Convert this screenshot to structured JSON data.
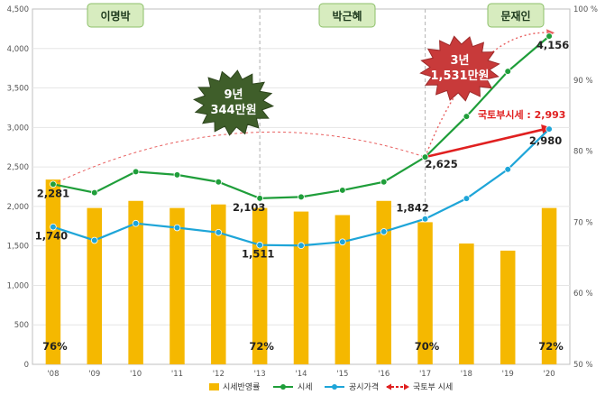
{
  "chart_data": {
    "type": "bar+line",
    "categories": [
      "'08",
      "'09",
      "'10",
      "'11",
      "'12",
      "'13",
      "'14",
      "'15",
      "'16",
      "'17",
      "'18",
      "'19",
      "'20"
    ],
    "left_axis": {
      "ylim": [
        0,
        4500
      ],
      "ticks": [
        "0",
        "500",
        "1,000",
        "1,500",
        "2,000",
        "2,500",
        "3,000",
        "3,500",
        "4,000",
        "4,500"
      ]
    },
    "right_axis": {
      "ylim": [
        50,
        100
      ],
      "ticks": [
        "50 %",
        "60 %",
        "70 %",
        "80 %",
        "90 %",
        "100 %"
      ]
    },
    "series": [
      {
        "name": "시세반영률",
        "kind": "bar",
        "axis": "right",
        "color": "#f5b800",
        "values": [
          76,
          72,
          73,
          72,
          72.5,
          72,
          71.5,
          71,
          73,
          70,
          67,
          66,
          72
        ]
      },
      {
        "name": "시세",
        "kind": "line",
        "axis": "left",
        "color": "#1f9e3a",
        "values": [
          2281,
          2175,
          2440,
          2400,
          2310,
          2103,
          2120,
          2205,
          2310,
          2625,
          3140,
          3710,
          4156
        ]
      },
      {
        "name": "공시가격",
        "kind": "line",
        "axis": "left",
        "color": "#1ea5d8",
        "values": [
          1740,
          1570,
          1785,
          1730,
          1670,
          1511,
          1505,
          1550,
          1680,
          1842,
          2100,
          2470,
          2980
        ]
      },
      {
        "name": "국토부 시세",
        "kind": "arrow",
        "axis": "left",
        "color": "#e02020",
        "values": [
          null,
          null,
          null,
          null,
          null,
          null,
          null,
          null,
          null,
          2625,
          null,
          null,
          2993
        ]
      }
    ],
    "point_labels": [
      {
        "series": "시세",
        "index": 0,
        "text": "2,281"
      },
      {
        "series": "공시가격",
        "index": 0,
        "text": "1,740"
      },
      {
        "series": "시세",
        "index": 5,
        "text": "2,103"
      },
      {
        "series": "공시가격",
        "index": 5,
        "text": "1,511"
      },
      {
        "series": "공시가격",
        "index": 9,
        "text": "1,842"
      },
      {
        "series": "시세",
        "index": 9,
        "text": "2,625"
      },
      {
        "series": "시세",
        "index": 12,
        "text": "4,156"
      },
      {
        "series": "공시가격",
        "index": 12,
        "text": "2,980"
      }
    ],
    "bar_labels": [
      {
        "index": 0,
        "text": "76%"
      },
      {
        "index": 5,
        "text": "72%"
      },
      {
        "index": 9,
        "text": "70%"
      },
      {
        "index": 12,
        "text": "72%"
      }
    ],
    "eras": [
      "이명박",
      "박근혜",
      "문재인"
    ],
    "annotations": {
      "burst1": [
        "9년",
        "344만원"
      ],
      "burst2": [
        "3년",
        "1,531만원"
      ],
      "molit_note": "국토부시세 : 2,993"
    },
    "legend": [
      "시세반영률",
      "시세",
      "공시가격",
      "국토부 시세"
    ],
    "colors": {
      "bar": "#f5b800",
      "market": "#1f9e3a",
      "official": "#1ea5d8",
      "molit": "#e02020",
      "era_box": "#d7ecbf",
      "burst1": "#3f5e2a",
      "burst2": "#c83a3a"
    }
  }
}
